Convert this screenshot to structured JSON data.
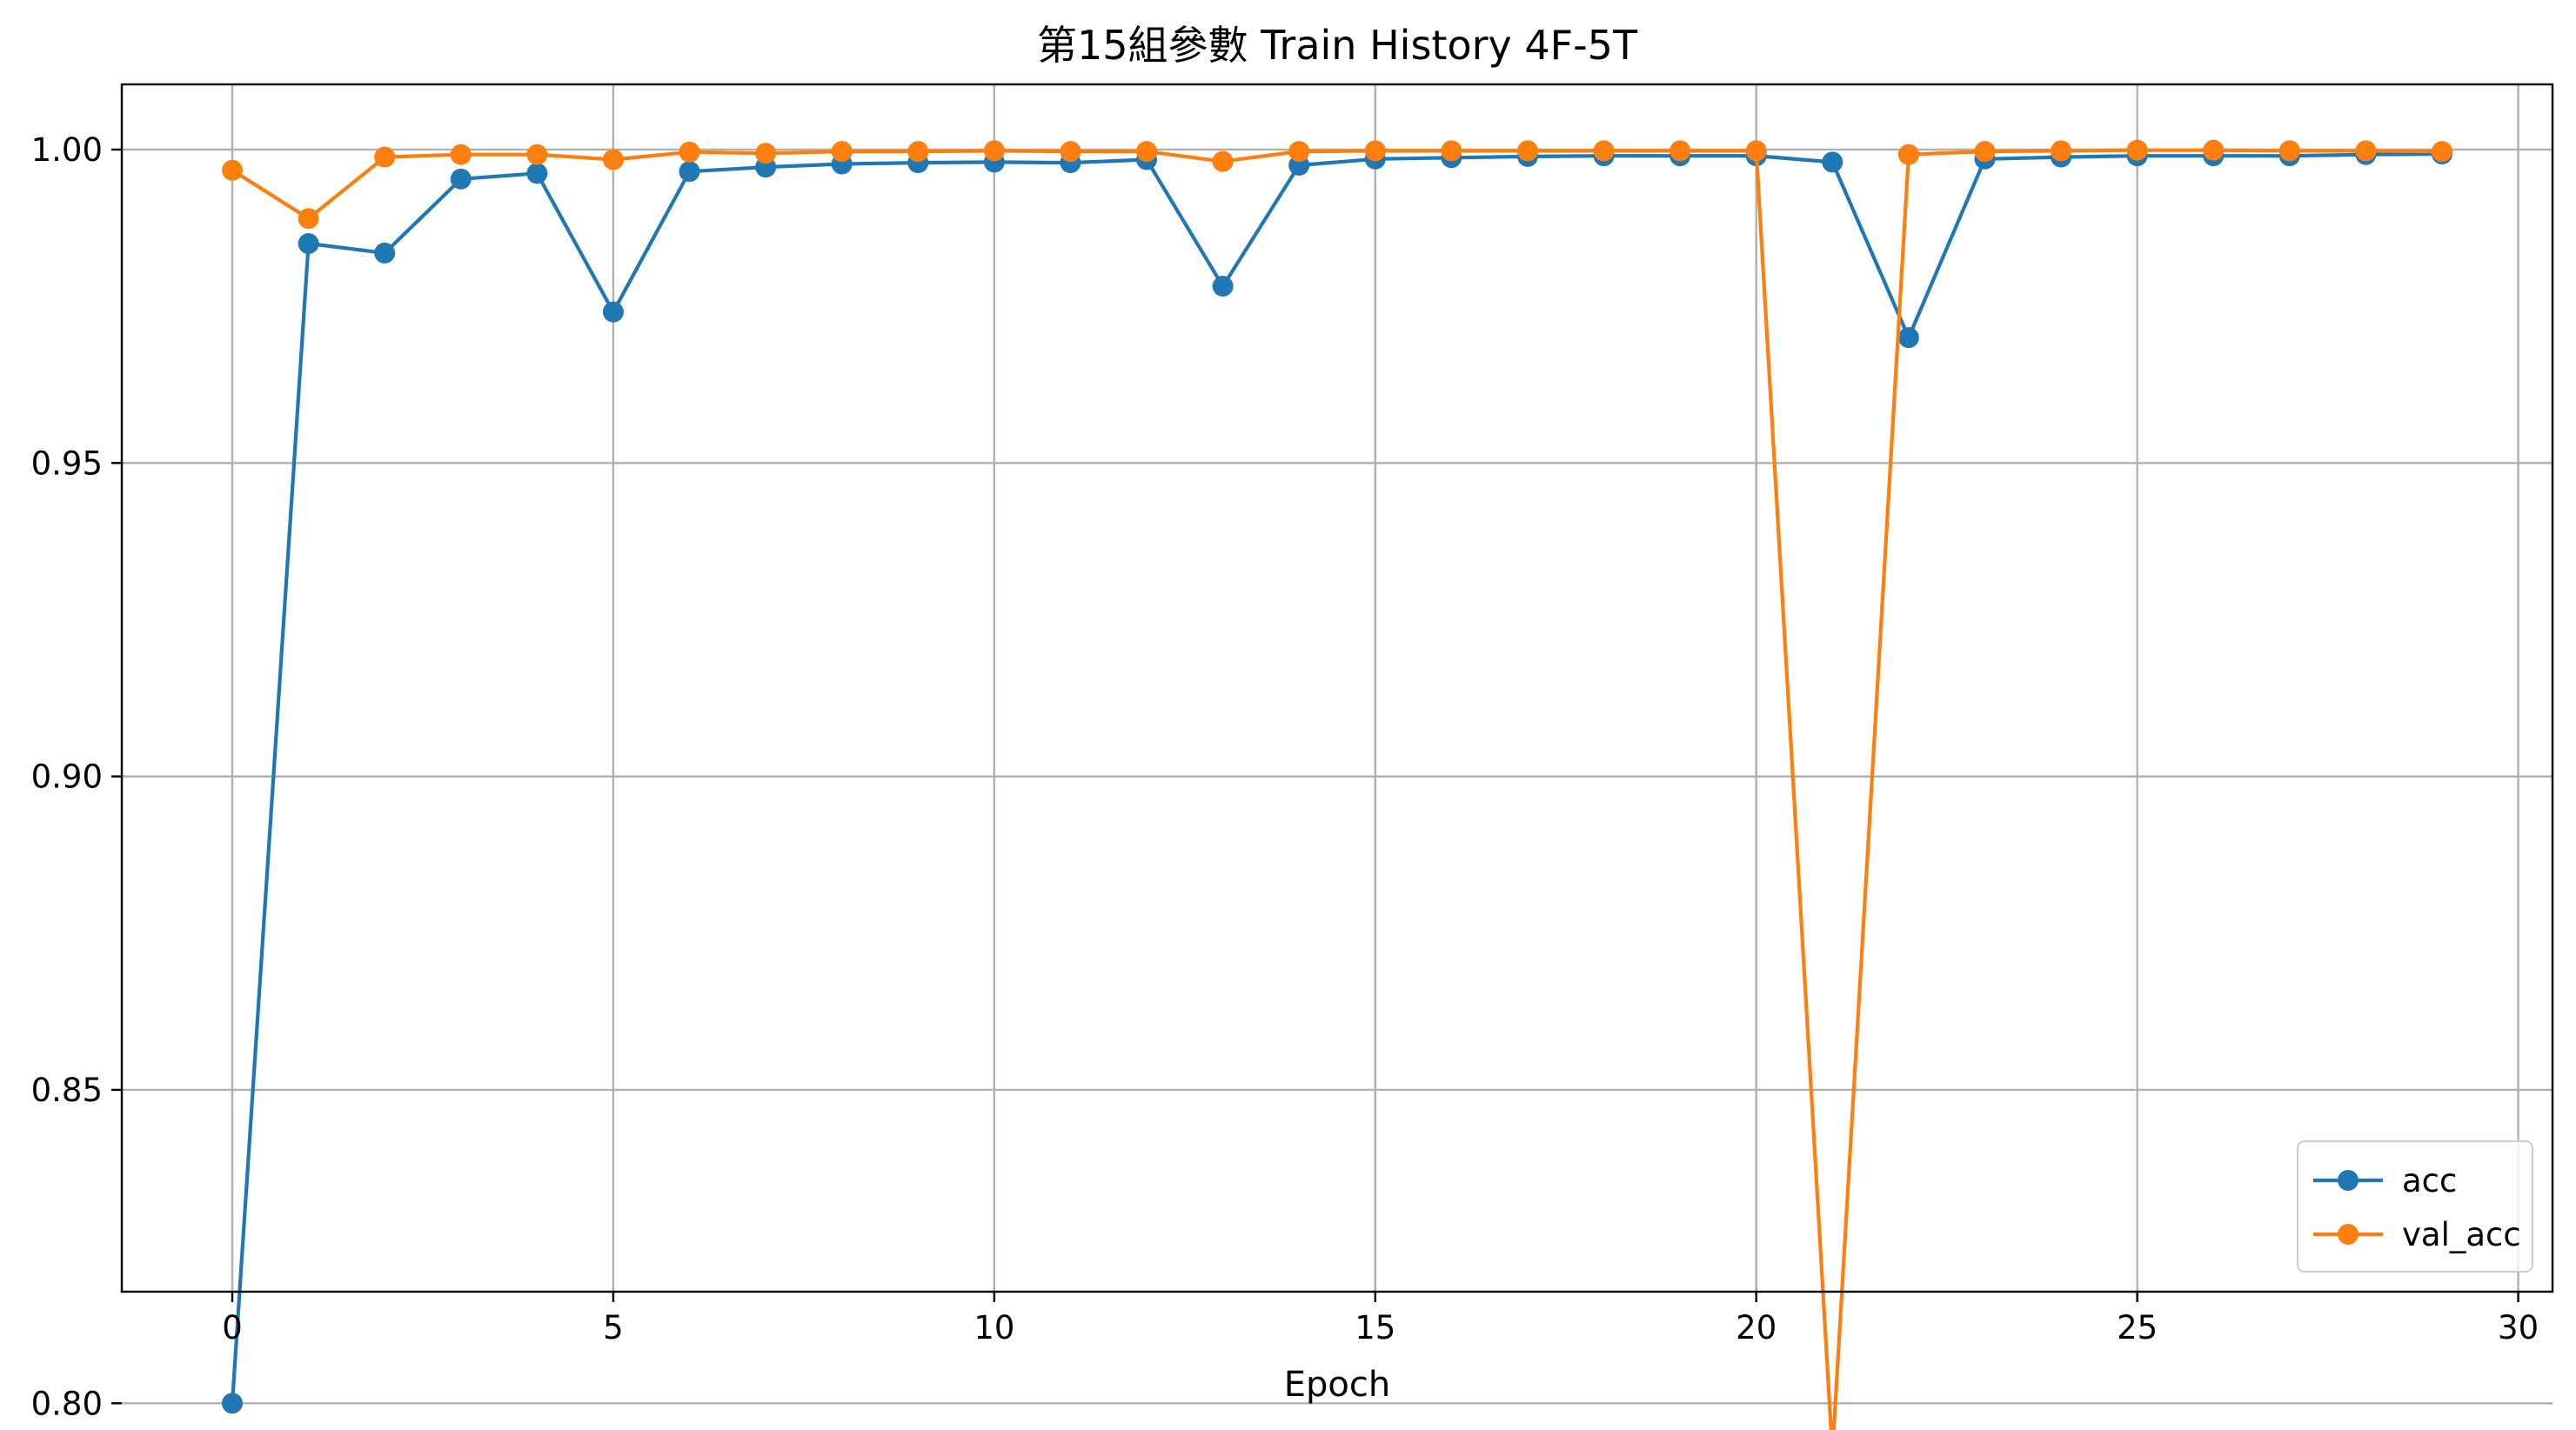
{
  "chart_data": {
    "type": "line",
    "title": "第15組參數 Train History 4F-5T",
    "xlabel": "Epoch",
    "ylabel": "",
    "xlim": [
      -1.45,
      30.45
    ],
    "ylim": [
      0.8178,
      1.0104
    ],
    "xticks": [
      0,
      5,
      10,
      15,
      20,
      25,
      30
    ],
    "xtick_labels": [
      "0",
      "5",
      "10",
      "15",
      "20",
      "25",
      "30"
    ],
    "yticks": [
      0.8,
      0.85,
      0.9,
      0.95,
      1.0
    ],
    "ytick_labels": [
      "0.80",
      "0.85",
      "0.90",
      "0.95",
      "1.00"
    ],
    "grid": true,
    "legend_position": "lower-right",
    "x": [
      0,
      1,
      2,
      3,
      4,
      5,
      6,
      7,
      8,
      9,
      10,
      11,
      12,
      13,
      14,
      15,
      16,
      17,
      18,
      19,
      20,
      21,
      22,
      23,
      24,
      25,
      26,
      27,
      28,
      29
    ],
    "series": [
      {
        "name": "acc",
        "color": "#1f77b4",
        "marker": "circle",
        "values": [
          0.8,
          0.985,
          0.9835,
          0.9953,
          0.9962,
          0.9741,
          0.9965,
          0.9972,
          0.9977,
          0.9979,
          0.998,
          0.9979,
          0.9984,
          0.9782,
          0.9975,
          0.9985,
          0.9987,
          0.9989,
          0.999,
          0.999,
          0.999,
          0.998,
          0.97,
          0.9985,
          0.9988,
          0.999,
          0.999,
          0.999,
          0.9992,
          0.9993
        ]
      },
      {
        "name": "val_acc",
        "color": "#ff7f0e",
        "marker": "circle",
        "values": [
          0.9967,
          0.989,
          0.9988,
          0.9992,
          0.9992,
          0.9984,
          0.9996,
          0.9994,
          0.9997,
          0.9997,
          0.9998,
          0.9997,
          0.9997,
          0.9981,
          0.9997,
          0.9998,
          0.9998,
          0.9998,
          0.9998,
          0.9998,
          0.9998,
          0.792,
          0.9992,
          0.9997,
          0.9998,
          0.9999,
          0.9999,
          0.9998,
          0.9998,
          0.9997
        ]
      }
    ]
  }
}
